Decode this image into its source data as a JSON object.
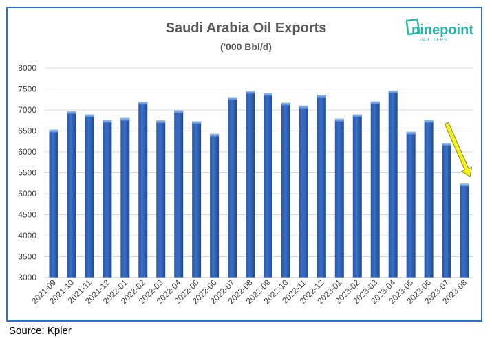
{
  "chart_data": {
    "type": "bar",
    "title": "Saudi Arabia Oil Exports",
    "subtitle": "('000 Bbl/d)",
    "categories": [
      "2021-09",
      "2021-10",
      "2021-11",
      "2021-12",
      "2022-01",
      "2022-02",
      "2022-03",
      "2022-04",
      "2022-05",
      "2022-06",
      "2022-07",
      "2022-08",
      "2022-09",
      "2022-10",
      "2022-11",
      "2022-12",
      "2023-01",
      "2023-02",
      "2023-03",
      "2023-04",
      "2023-05",
      "2023-06",
      "2023-07",
      "2023-08"
    ],
    "values": [
      6530,
      6970,
      6890,
      6760,
      6810,
      7190,
      6750,
      6990,
      6730,
      6430,
      7300,
      7450,
      7400,
      7170,
      7100,
      7360,
      6790,
      6890,
      7200,
      7460,
      6480,
      6760,
      6210,
      5240
    ],
    "ylim": [
      3000,
      8000
    ],
    "yticks": [
      "3000",
      "3500",
      "4000",
      "4500",
      "5000",
      "5500",
      "6000",
      "6500",
      "7000",
      "7500",
      "8000"
    ],
    "grid": true,
    "legend": "none",
    "bar_color": "#3a6fc4",
    "annotation": "yellow arrow pointing down to 2023-08 bar"
  },
  "logo": {
    "name": "ninepoint",
    "tagline": "PARTNERS",
    "color": "#2bb5a8"
  },
  "source": "Source: Kpler"
}
